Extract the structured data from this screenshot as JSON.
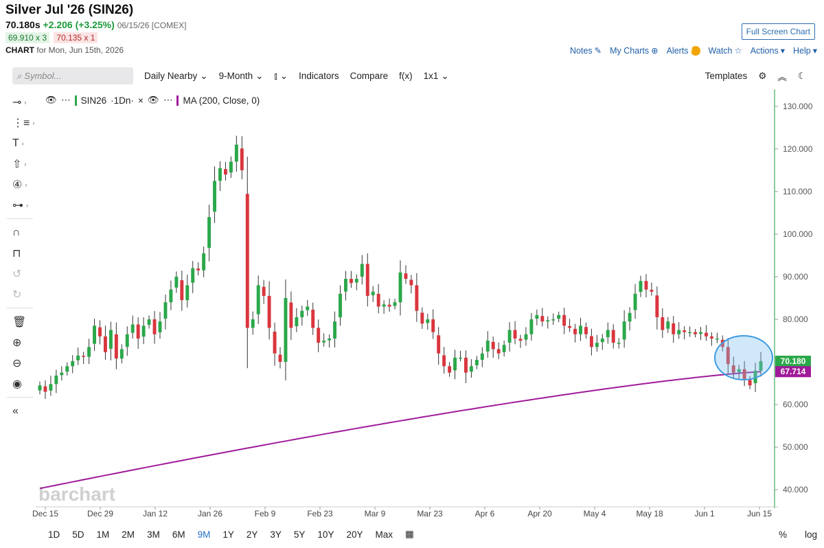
{
  "header": {
    "title": "Silver Jul '26 (SIN26)",
    "last": "70.180s",
    "change": "+2.206 (+3.25%)",
    "meta": "06/15/26 [COMEX]",
    "bid": "69.910 x 3",
    "ask": "70.135 x 1",
    "chart_label": "CHART",
    "chart_for": "for Mon, Jun 15th, 2026",
    "full_screen": "Full Screen Chart"
  },
  "top_links": {
    "notes": "Notes",
    "my_charts": "My Charts",
    "alerts": "Alerts",
    "alerts_badge": "!",
    "watch": "Watch",
    "actions": "Actions",
    "help": "Help"
  },
  "toolbar": {
    "symbol_placeholder": "Symbol...",
    "period": "Daily Nearby",
    "range": "9-Month",
    "indicators": "Indicators",
    "compare": "Compare",
    "fx": "f(x)",
    "layout": "1x1",
    "templates": "Templates"
  },
  "legend": {
    "symbol": "SIN26",
    "interval": "·1Dn·",
    "ma": "MA (200, Close, 0)"
  },
  "watermark": "barchart",
  "bottom": {
    "ranges": [
      "1D",
      "5D",
      "1M",
      "2M",
      "3M",
      "6M",
      "9M",
      "1Y",
      "2Y",
      "3Y",
      "5Y",
      "10Y",
      "20Y",
      "Max"
    ],
    "active_range": "9M",
    "percent": "%",
    "log": "log"
  },
  "colors": {
    "up": "#2ba84a",
    "down": "#d9363e",
    "ma": "#a01a9a",
    "axis": "#1a9a3a",
    "link": "#1f5fa8",
    "highlight": "#3a9be0"
  },
  "chart_data": {
    "type": "candlestick",
    "y_ticks": [
      "130.000",
      "120.000",
      "110.000",
      "100.000",
      "90.000",
      "80.000",
      "70.000",
      "60.000",
      "50.000",
      "40.000"
    ],
    "ylim": [
      36,
      134
    ],
    "x_ticks": [
      "Dec 15",
      "Dec 29",
      "Jan 12",
      "Jan 26",
      "Feb 9",
      "Feb 23",
      "Mar 9",
      "Mar 23",
      "Apr 6",
      "Apr 20",
      "May 4",
      "May 18",
      "Jun 1",
      "Jun 15"
    ],
    "last_price_label": "70.180",
    "ma_label": "67.714",
    "ma_name": "MA (200, Close, 0)",
    "close": [
      64.5,
      63.0,
      64.8,
      66.8,
      67.5,
      69.0,
      70.2,
      71.5,
      71.2,
      73.5,
      78.5,
      76.0,
      72.3,
      77.5,
      70.8,
      73.0,
      76.5,
      78.8,
      75.5,
      78.5,
      80.0,
      76.5,
      79.5,
      84.0,
      87.0,
      90.0,
      84.5,
      88.0,
      92.0,
      91.5,
      95.5,
      104.0,
      112.5,
      115.5,
      114.0,
      117.0,
      121.0,
      115.0,
      78.0,
      80.0,
      88.0,
      85.5,
      78.0,
      72.0,
      70.0,
      85.0,
      78.0,
      80.5,
      82.0,
      83.0,
      78.0,
      74.5,
      75.0,
      75.5,
      79.5,
      86.0,
      89.5,
      88.5,
      89.5,
      93.0,
      85.5,
      86.5,
      83.0,
      83.5,
      83.0,
      84.0,
      91.0,
      89.5,
      88.0,
      82.0,
      79.0,
      80.0,
      77.0,
      72.0,
      69.0,
      67.5,
      71.0,
      71.0,
      67.5,
      69.0,
      70.5,
      72.0,
      75.0,
      73.0,
      72.0,
      74.0,
      77.5,
      75.5,
      75.0,
      76.5,
      80.0,
      81.0,
      79.5,
      79.8,
      80.0,
      81.0,
      78.5,
      78.0,
      76.5,
      78.5,
      76.5,
      73.5,
      74.5,
      75.5,
      77.5,
      74.5,
      74.5,
      79.5,
      81.5,
      86.0,
      89.0,
      87.0,
      86.5,
      80.5,
      77.5,
      79.5,
      76.5,
      77.5,
      77.0,
      77.0,
      76.5,
      77.0,
      76.0,
      75.5,
      75.5,
      73.5,
      69.5,
      67.5,
      68.3,
      66.0,
      64.5,
      67.96,
      70.18
    ]
  }
}
